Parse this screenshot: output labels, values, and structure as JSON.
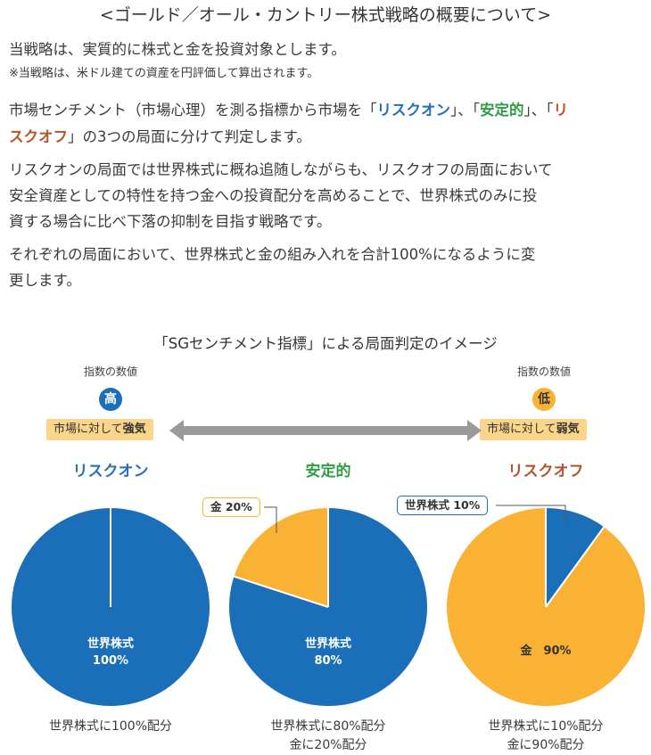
{
  "heading": "<ゴールド／オール・カントリー株式戦略の概要について>",
  "intro": {
    "line1": "当戦略は、実質的に株式と金を投資対象とします。",
    "note": "※当戦略は、米ドル建ての資産を円評価して算出されます。"
  },
  "para1": {
    "a": "市場センチメント（市場心理）を測る指標から市場を「",
    "risk_on": "リスクオン",
    "b": "」、「",
    "stable": "安定的",
    "c": "」、「",
    "risk_off_1": "リ",
    "risk_off_2": "スクオフ",
    "d": "」の3つの局面に分けて判定します。"
  },
  "para2": [
    "リスクオンの局面では世界株式に概ね追随しながらも、リスクオフの局面において",
    "安全資産としての特性を持つ金への投資配分を高めることで、世界株式のみに投",
    "資する場合に比べ下落の抑制を目指す戦略です。"
  ],
  "para3": [
    "それぞれの局面において、世界株式と金の組み入れを合計100%になるように変",
    "更します。"
  ],
  "diagram": {
    "title": "「SGセンチメント指標」による局面判定のイメージ",
    "left": {
      "index_label": "指数の数値",
      "level": "高",
      "tag_a": "市場に対して",
      "tag_b": "強気"
    },
    "right": {
      "index_label": "指数の数値",
      "level": "低",
      "tag_a": "市場に対して",
      "tag_b": "弱気"
    },
    "colors": {
      "stock": "#1a6fb8",
      "gold": "#f9b233",
      "risk_on": "#2a6fb5",
      "stable": "#2e9e45",
      "risk_off": "#b5532a"
    },
    "phases": [
      {
        "name": "リスクオン",
        "stock_pct": 100,
        "gold_pct": 0,
        "inner_label_1": "世界株式",
        "inner_label_2": "100%",
        "caption_1": "世界株式に100%配分",
        "caption_2": ""
      },
      {
        "name": "安定的",
        "stock_pct": 80,
        "gold_pct": 20,
        "inner_label_1": "世界株式",
        "inner_label_2": "80%",
        "callout": "金 20%",
        "caption_1": "世界株式に80%配分",
        "caption_2": "金に20%配分"
      },
      {
        "name": "リスクオフ",
        "stock_pct": 10,
        "gold_pct": 90,
        "inner_label_1": "金　90%",
        "callout": "世界株式 10%",
        "caption_1": "世界株式に10%配分",
        "caption_2": "金に90%配分"
      }
    ]
  }
}
